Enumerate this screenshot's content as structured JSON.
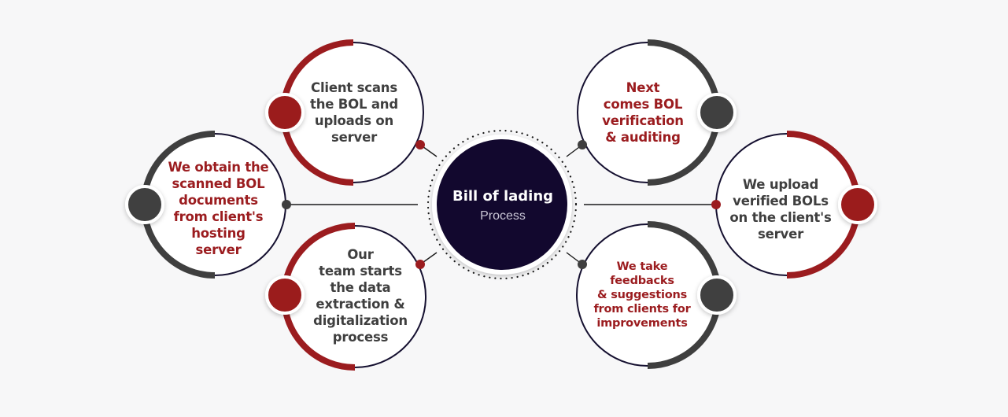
{
  "center": {
    "title": "Bill of lading",
    "subtitle": "Process"
  },
  "steps": [
    {
      "id": "scan",
      "text": "Client scans\nthe BOL and\nuploads on\nserver"
    },
    {
      "id": "obtain",
      "text": "We obtain the\nscanned BOL\ndocuments\nfrom client's\nhosting\nserver"
    },
    {
      "id": "extract",
      "text": "Our\nteam starts\nthe data\nextraction &\ndigitalization\nprocess"
    },
    {
      "id": "verify",
      "text": "Next\ncomes BOL\nverification\n& auditing"
    },
    {
      "id": "upload",
      "text": "We upload\nverified BOLs\non the client's\nserver"
    },
    {
      "id": "feedback",
      "text": "We take\nfeedbacks\n& suggestions\nfrom clients for\nimprovements"
    }
  ],
  "colors": {
    "red": "#9b1c1f",
    "dark": "#3f3f3f",
    "navy": "#12082e",
    "background": "#f7f7f8"
  }
}
